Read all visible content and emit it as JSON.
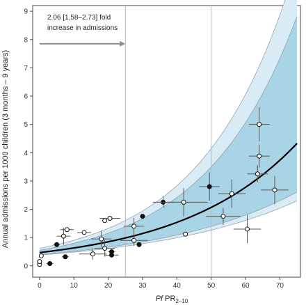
{
  "chart_data": {
    "type": "scatter",
    "xlabel": "Pf PR",
    "xlabel_italic": "Pf",
    "xlabel_main": " PR",
    "xlabel_sub": "2–10",
    "ylabel": "Annual admissions per 1000 children (3 months – 9 years)",
    "xlim": [
      -2,
      76
    ],
    "ylim": [
      -0.4,
      9.2
    ],
    "x_ticks": [
      "0",
      "10",
      "20",
      "30",
      "40",
      "50",
      "60",
      "70"
    ],
    "x_tick_values": [
      0,
      10,
      20,
      30,
      40,
      50,
      60,
      70
    ],
    "y_ticks": [
      "0",
      "1",
      "2",
      "3",
      "4",
      "5",
      "6",
      "7",
      "8",
      "9"
    ],
    "y_tick_values": [
      0,
      1,
      2,
      3,
      4,
      5,
      6,
      7,
      8,
      9
    ],
    "vlines": [
      25,
      50
    ],
    "annotation": {
      "line1": "2.06 [1.58–2.73] fold",
      "line2": "increase in admissions",
      "arrow_from_x": 0,
      "arrow_to_x": 25,
      "arrow_y": 7.85
    },
    "colors": {
      "inner_band": "#a8d4e6",
      "outer_band": "#d9ebf4",
      "band_edge": "#8a9aa8",
      "fit_line": "#000000",
      "grid_line": "#b8b8b8",
      "arrow": "#8c8c8c",
      "point_open_fill": "#ffffff",
      "point_filled": "#111111",
      "error_bar": "#555555"
    },
    "fit": {
      "a": 0.47,
      "b": 0.0296,
      "x_range": [
        0,
        75
      ]
    },
    "bands": {
      "inner": {
        "lower": {
          "a": 0.4,
          "b": 0.025
        },
        "upper": {
          "a": 0.55,
          "b": 0.037
        }
      },
      "outer": {
        "lower": {
          "a": 0.38,
          "b": 0.024
        },
        "upper": {
          "a": 0.62,
          "b": 0.038
        }
      }
    },
    "points": [
      {
        "x": 0,
        "y": 0.05,
        "filled": false,
        "xerr": [
          0,
          0
        ],
        "yerr": [
          0,
          0
        ]
      },
      {
        "x": 0,
        "y": 0.15,
        "filled": false,
        "xerr": [
          0,
          0
        ],
        "yerr": [
          0,
          0
        ]
      },
      {
        "x": 0.5,
        "y": 0.35,
        "filled": false,
        "xerr": [
          0,
          0.5
        ],
        "yerr": [
          0,
          0
        ]
      },
      {
        "x": 3,
        "y": 0.08,
        "filled": true,
        "xerr": [
          1,
          1
        ],
        "yerr": [
          0,
          0
        ]
      },
      {
        "x": 5,
        "y": 0.75,
        "filled": true,
        "xerr": [
          1,
          1
        ],
        "yerr": [
          0,
          0
        ]
      },
      {
        "x": 7,
        "y": 1.05,
        "filled": false,
        "xerr": [
          2,
          2
        ],
        "yerr": [
          0.3,
          0.3
        ]
      },
      {
        "x": 7.5,
        "y": 0.32,
        "filled": true,
        "xerr": [
          1,
          1
        ],
        "yerr": [
          0,
          0
        ]
      },
      {
        "x": 8,
        "y": 1.28,
        "filled": false,
        "xerr": [
          2,
          2
        ],
        "yerr": [
          0,
          0
        ]
      },
      {
        "x": 13,
        "y": 1.18,
        "filled": false,
        "xerr": [
          2,
          2
        ],
        "yerr": [
          0,
          0
        ]
      },
      {
        "x": 15.5,
        "y": 0.42,
        "filled": false,
        "xerr": [
          4,
          4
        ],
        "yerr": [
          0.2,
          0.2
        ]
      },
      {
        "x": 18,
        "y": 0.95,
        "filled": false,
        "xerr": [
          3,
          3
        ],
        "yerr": [
          0.3,
          0.3
        ]
      },
      {
        "x": 19,
        "y": 0.62,
        "filled": false,
        "xerr": [
          3,
          3
        ],
        "yerr": [
          0.3,
          0.3
        ]
      },
      {
        "x": 19,
        "y": 1.6,
        "filled": false,
        "xerr": [
          0,
          0
        ],
        "yerr": [
          0,
          0
        ]
      },
      {
        "x": 20.5,
        "y": 1.68,
        "filled": false,
        "xerr": [
          3,
          3
        ],
        "yerr": [
          0,
          0
        ]
      },
      {
        "x": 21,
        "y": 0.5,
        "filled": true,
        "xerr": [
          1,
          1
        ],
        "yerr": [
          0,
          0
        ]
      },
      {
        "x": 21,
        "y": 0.38,
        "filled": true,
        "xerr": [
          2,
          2
        ],
        "yerr": [
          0,
          0
        ]
      },
      {
        "x": 27.5,
        "y": 0.9,
        "filled": false,
        "xerr": [
          4,
          4
        ],
        "yerr": [
          0.2,
          0.2
        ]
      },
      {
        "x": 27.5,
        "y": 1.4,
        "filled": false,
        "xerr": [
          3,
          3
        ],
        "yerr": [
          0.3,
          0.3
        ]
      },
      {
        "x": 29,
        "y": 0.75,
        "filled": true,
        "xerr": [
          0,
          0
        ],
        "yerr": [
          0,
          0
        ]
      },
      {
        "x": 30,
        "y": 1.75,
        "filled": true,
        "xerr": [
          0,
          0
        ],
        "yerr": [
          0,
          0
        ]
      },
      {
        "x": 36,
        "y": 2.25,
        "filled": true,
        "xerr": [
          3,
          3
        ],
        "yerr": [
          0.2,
          0.2
        ]
      },
      {
        "x": 42,
        "y": 2.25,
        "filled": false,
        "xerr": [
          7,
          7
        ],
        "yerr": [
          0.5,
          0.5
        ]
      },
      {
        "x": 42.5,
        "y": 1.12,
        "filled": false,
        "xerr": [
          0,
          0
        ],
        "yerr": [
          0,
          0
        ]
      },
      {
        "x": 49.5,
        "y": 2.8,
        "filled": true,
        "xerr": [
          3,
          3
        ],
        "yerr": [
          0.5,
          0.5
        ]
      },
      {
        "x": 53.5,
        "y": 1.75,
        "filled": false,
        "xerr": [
          5,
          5
        ],
        "yerr": [
          0.3,
          0.3
        ]
      },
      {
        "x": 56,
        "y": 2.55,
        "filled": false,
        "xerr": [
          4,
          4
        ],
        "yerr": [
          0.5,
          0.5
        ]
      },
      {
        "x": 60.5,
        "y": 1.3,
        "filled": false,
        "xerr": [
          4,
          4
        ],
        "yerr": [
          0.5,
          0.5
        ]
      },
      {
        "x": 64,
        "y": 5.0,
        "filled": false,
        "xerr": [
          3,
          3
        ],
        "yerr": [
          0.6,
          0.6
        ]
      },
      {
        "x": 64,
        "y": 3.88,
        "filled": false,
        "xerr": [
          3,
          3
        ],
        "yerr": [
          0.4,
          0.4
        ]
      },
      {
        "x": 63.5,
        "y": 3.25,
        "filled": false,
        "xerr": [
          3,
          3
        ],
        "yerr": [
          0.3,
          0.3
        ]
      },
      {
        "x": 68.5,
        "y": 2.68,
        "filled": false,
        "xerr": [
          4,
          4
        ],
        "yerr": [
          0.5,
          0.5
        ]
      }
    ]
  }
}
